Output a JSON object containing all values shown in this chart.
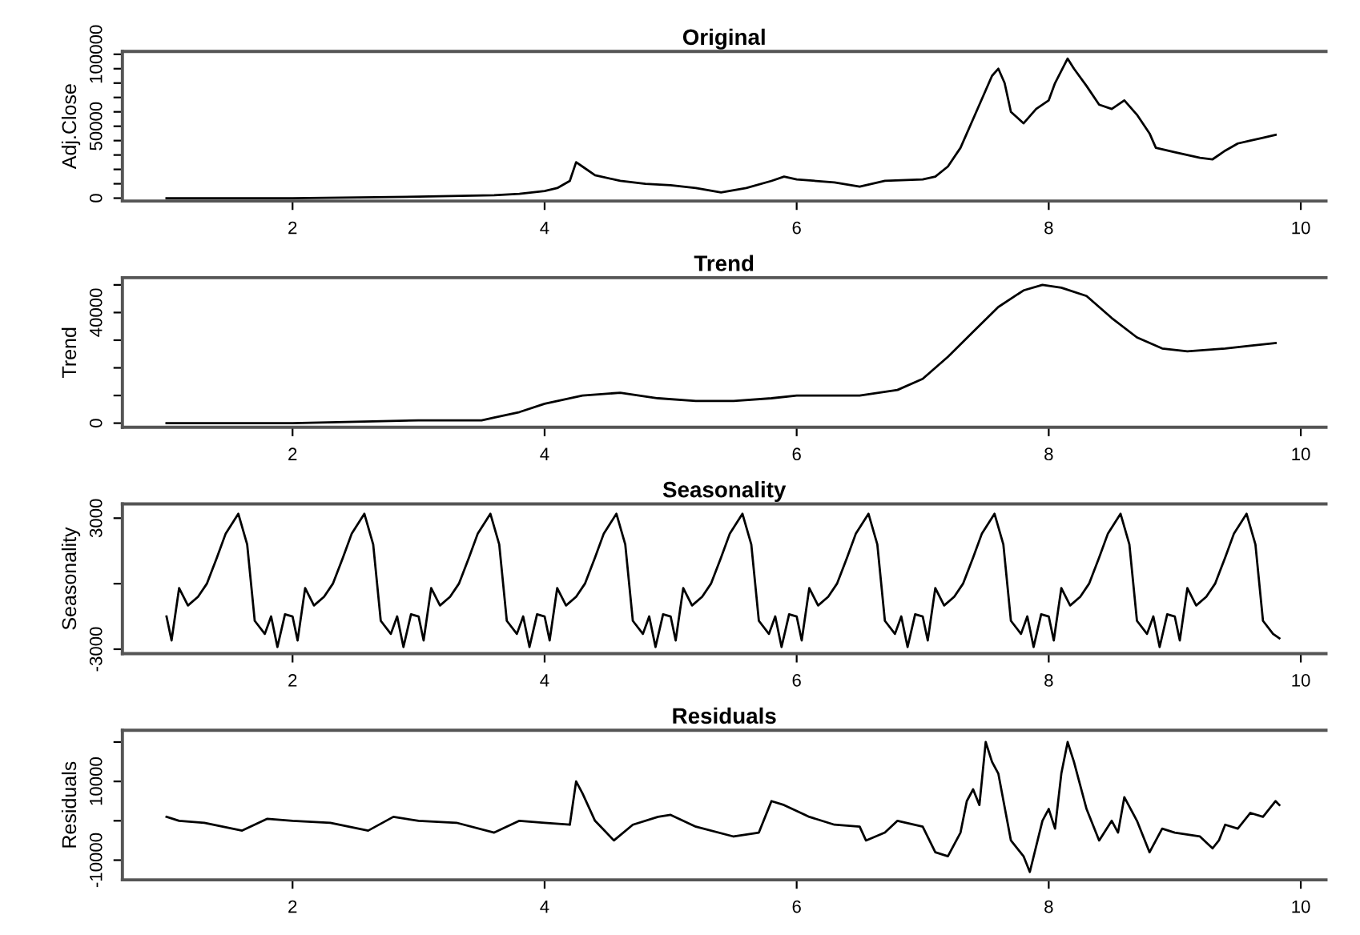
{
  "chart_data": [
    {
      "type": "line",
      "title": "Original",
      "ylabel": "Adj.Close",
      "color": "#000000",
      "grid": false,
      "xlim": [
        0.65,
        10.2
      ],
      "xticks": [
        2,
        4,
        6,
        8,
        10
      ],
      "ylim": [
        -2000,
        102000
      ],
      "yticks": [
        0,
        {
          "value": 10000,
          "label": null
        },
        {
          "value": 20000,
          "label": null
        },
        {
          "value": 30000,
          "label": null
        },
        {
          "value": 40000,
          "label": null
        },
        50000,
        {
          "value": 60000,
          "label": null
        },
        {
          "value": 70000,
          "label": null
        },
        {
          "value": 80000,
          "label": null
        },
        {
          "value": 90000,
          "label": null
        },
        100000
      ],
      "x": [
        1.0,
        2.0,
        3.0,
        3.6,
        3.8,
        4.0,
        4.1,
        4.2,
        4.25,
        4.3,
        4.4,
        4.6,
        4.8,
        5.0,
        5.2,
        5.4,
        5.6,
        5.8,
        5.9,
        6.0,
        6.3,
        6.5,
        6.7,
        7.0,
        7.1,
        7.2,
        7.3,
        7.4,
        7.5,
        7.55,
        7.6,
        7.65,
        7.7,
        7.8,
        7.9,
        8.0,
        8.05,
        8.15,
        8.2,
        8.3,
        8.4,
        8.5,
        8.6,
        8.7,
        8.8,
        8.85,
        9.0,
        9.2,
        9.3,
        9.4,
        9.5,
        9.6,
        9.7,
        9.8
      ],
      "values": [
        0,
        0,
        1000,
        2000,
        3000,
        5000,
        7000,
        12000,
        25000,
        22000,
        16000,
        12000,
        10000,
        9000,
        7000,
        4000,
        7000,
        12000,
        15000,
        13000,
        11000,
        8000,
        12000,
        13000,
        15000,
        22000,
        35000,
        55000,
        75000,
        85000,
        90000,
        80000,
        60000,
        52000,
        62000,
        68000,
        80000,
        97000,
        90000,
        78000,
        65000,
        62000,
        68000,
        58000,
        45000,
        35000,
        32000,
        28000,
        27000,
        33000,
        38000,
        40000,
        42000,
        44000
      ]
    },
    {
      "type": "line",
      "title": "Trend",
      "ylabel": "Trend",
      "color": "#000000",
      "grid": false,
      "xlim": [
        0.65,
        10.2
      ],
      "xticks": [
        2,
        4,
        6,
        8,
        10
      ],
      "ylim": [
        -1500,
        52600
      ],
      "yticks": [
        0,
        {
          "value": 10000,
          "label": null
        },
        {
          "value": 20000,
          "label": null
        },
        {
          "value": 30000,
          "label": null
        },
        40000,
        {
          "value": 50000,
          "label": null
        }
      ],
      "x": [
        1.0,
        2.0,
        3.0,
        3.5,
        3.6,
        3.8,
        4.0,
        4.3,
        4.6,
        4.9,
        5.2,
        5.5,
        5.8,
        6.0,
        6.5,
        6.8,
        7.0,
        7.2,
        7.4,
        7.6,
        7.8,
        7.95,
        8.1,
        8.3,
        8.5,
        8.7,
        8.9,
        9.1,
        9.4,
        9.6,
        9.8
      ],
      "values": [
        0,
        0,
        1000,
        1000,
        2000,
        4000,
        7000,
        10000,
        11000,
        9000,
        8000,
        8000,
        9000,
        10000,
        10000,
        12000,
        16000,
        24000,
        33000,
        42000,
        48000,
        50000,
        49000,
        46000,
        38000,
        31000,
        27000,
        26000,
        27000,
        28000,
        29000
      ]
    },
    {
      "type": "line",
      "title": "Seasonality",
      "ylabel": "Seasonality",
      "color": "#000000",
      "grid": false,
      "xlim": [
        0.65,
        10.2
      ],
      "xticks": [
        2,
        4,
        6,
        8,
        10
      ],
      "ylim": [
        -3200,
        3650
      ],
      "yticks": [
        -3000,
        {
          "value": 0,
          "label": null
        },
        3000
      ],
      "x": [
        1.0,
        1.04,
        1.1,
        1.17,
        1.25,
        1.32,
        1.4,
        1.47,
        1.57,
        1.64,
        1.7,
        1.78,
        1.83,
        1.88,
        1.94,
        2.0,
        2.04,
        2.1,
        2.17,
        2.25,
        2.32,
        2.4,
        2.47,
        2.57,
        2.64,
        2.7,
        2.78,
        2.83,
        2.88,
        2.94,
        3.0,
        3.04,
        3.1,
        3.17,
        3.25,
        3.32,
        3.4,
        3.47,
        3.57,
        3.64,
        3.7,
        3.78,
        3.83,
        3.88,
        3.94,
        4.0,
        4.04,
        4.1,
        4.17,
        4.25,
        4.32,
        4.4,
        4.47,
        4.57,
        4.64,
        4.7,
        4.78,
        4.83,
        4.88,
        4.94,
        5.0,
        5.04,
        5.1,
        5.17,
        5.25,
        5.32,
        5.4,
        5.47,
        5.57,
        5.64,
        5.7,
        5.78,
        5.83,
        5.88,
        5.94,
        6.0,
        6.04,
        6.1,
        6.17,
        6.25,
        6.32,
        6.4,
        6.47,
        6.57,
        6.64,
        6.7,
        6.78,
        6.83,
        6.88,
        6.94,
        7.0,
        7.04,
        7.1,
        7.17,
        7.25,
        7.32,
        7.4,
        7.47,
        7.57,
        7.64,
        7.7,
        7.78,
        7.83,
        7.88,
        7.94,
        8.0,
        8.04,
        8.1,
        8.17,
        8.25,
        8.32,
        8.4,
        8.47,
        8.57,
        8.64,
        8.7,
        8.78,
        8.83,
        8.88,
        8.94,
        9.0,
        9.04,
        9.1,
        9.17,
        9.25,
        9.32,
        9.4,
        9.47,
        9.57,
        9.64,
        9.7,
        9.78,
        9.83
      ],
      "values": [
        -1500,
        -2600,
        -200,
        -1000,
        -600,
        0,
        1200,
        2300,
        3200,
        1800,
        -1700,
        -2300,
        -1500,
        -2900,
        -1400,
        -1500,
        -2600,
        -200,
        -1000,
        -600,
        0,
        1200,
        2300,
        3200,
        1800,
        -1700,
        -2300,
        -1500,
        -2900,
        -1400,
        -1500,
        -2600,
        -200,
        -1000,
        -600,
        0,
        1200,
        2300,
        3200,
        1800,
        -1700,
        -2300,
        -1500,
        -2900,
        -1400,
        -1500,
        -2600,
        -200,
        -1000,
        -600,
        0,
        1200,
        2300,
        3200,
        1800,
        -1700,
        -2300,
        -1500,
        -2900,
        -1400,
        -1500,
        -2600,
        -200,
        -1000,
        -600,
        0,
        1200,
        2300,
        3200,
        1800,
        -1700,
        -2300,
        -1500,
        -2900,
        -1400,
        -1500,
        -2600,
        -200,
        -1000,
        -600,
        0,
        1200,
        2300,
        3200,
        1800,
        -1700,
        -2300,
        -1500,
        -2900,
        -1400,
        -1500,
        -2600,
        -200,
        -1000,
        -600,
        0,
        1200,
        2300,
        3200,
        1800,
        -1700,
        -2300,
        -1500,
        -2900,
        -1400,
        -1500,
        -2600,
        -200,
        -1000,
        -600,
        0,
        1200,
        2300,
        3200,
        1800,
        -1700,
        -2300,
        -1500,
        -2900,
        -1400,
        -1500,
        -2600,
        -200,
        -1000,
        -600,
        0,
        1200,
        2300,
        3200,
        1800,
        -1700,
        -2300,
        -2500
      ]
    },
    {
      "type": "line",
      "title": "Residuals",
      "ylabel": "Residuals",
      "color": "#000000",
      "grid": false,
      "xlim": [
        0.65,
        10.2
      ],
      "xticks": [
        2,
        4,
        6,
        8,
        10
      ],
      "ylim": [
        -15000,
        23000
      ],
      "yticks": [
        -10000,
        {
          "value": 0,
          "label": null
        },
        10000,
        {
          "value": 20000,
          "label": null
        }
      ],
      "x": [
        1.0,
        1.1,
        1.3,
        1.6,
        1.8,
        2.0,
        2.3,
        2.6,
        2.8,
        3.0,
        3.3,
        3.6,
        3.8,
        4.0,
        4.2,
        4.25,
        4.3,
        4.4,
        4.55,
        4.7,
        4.9,
        5.0,
        5.2,
        5.5,
        5.7,
        5.8,
        5.9,
        6.1,
        6.3,
        6.5,
        6.55,
        6.7,
        6.8,
        7.0,
        7.1,
        7.2,
        7.3,
        7.35,
        7.4,
        7.45,
        7.5,
        7.55,
        7.6,
        7.7,
        7.8,
        7.85,
        7.95,
        8.0,
        8.05,
        8.1,
        8.15,
        8.2,
        8.3,
        8.4,
        8.5,
        8.55,
        8.6,
        8.7,
        8.8,
        8.9,
        9.0,
        9.2,
        9.3,
        9.35,
        9.4,
        9.5,
        9.6,
        9.7,
        9.8,
        9.83
      ],
      "values": [
        1000,
        0,
        -500,
        -2500,
        500,
        0,
        -500,
        -2500,
        1000,
        0,
        -500,
        -3000,
        0,
        -500,
        -1000,
        10000,
        7000,
        0,
        -5000,
        -1000,
        1000,
        1500,
        -1500,
        -4000,
        -3000,
        5000,
        4000,
        1000,
        -1000,
        -1500,
        -5000,
        -3000,
        0,
        -1500,
        -8000,
        -9000,
        -3000,
        5000,
        8000,
        4000,
        20000,
        15000,
        12000,
        -5000,
        -9000,
        -13000,
        0,
        3000,
        -2000,
        12000,
        20000,
        15000,
        3000,
        -5000,
        0,
        -3000,
        6000,
        0,
        -8000,
        -2000,
        -3000,
        -4000,
        -7000,
        -5000,
        -1000,
        -2000,
        2000,
        1000,
        5000,
        4000
      ]
    }
  ]
}
